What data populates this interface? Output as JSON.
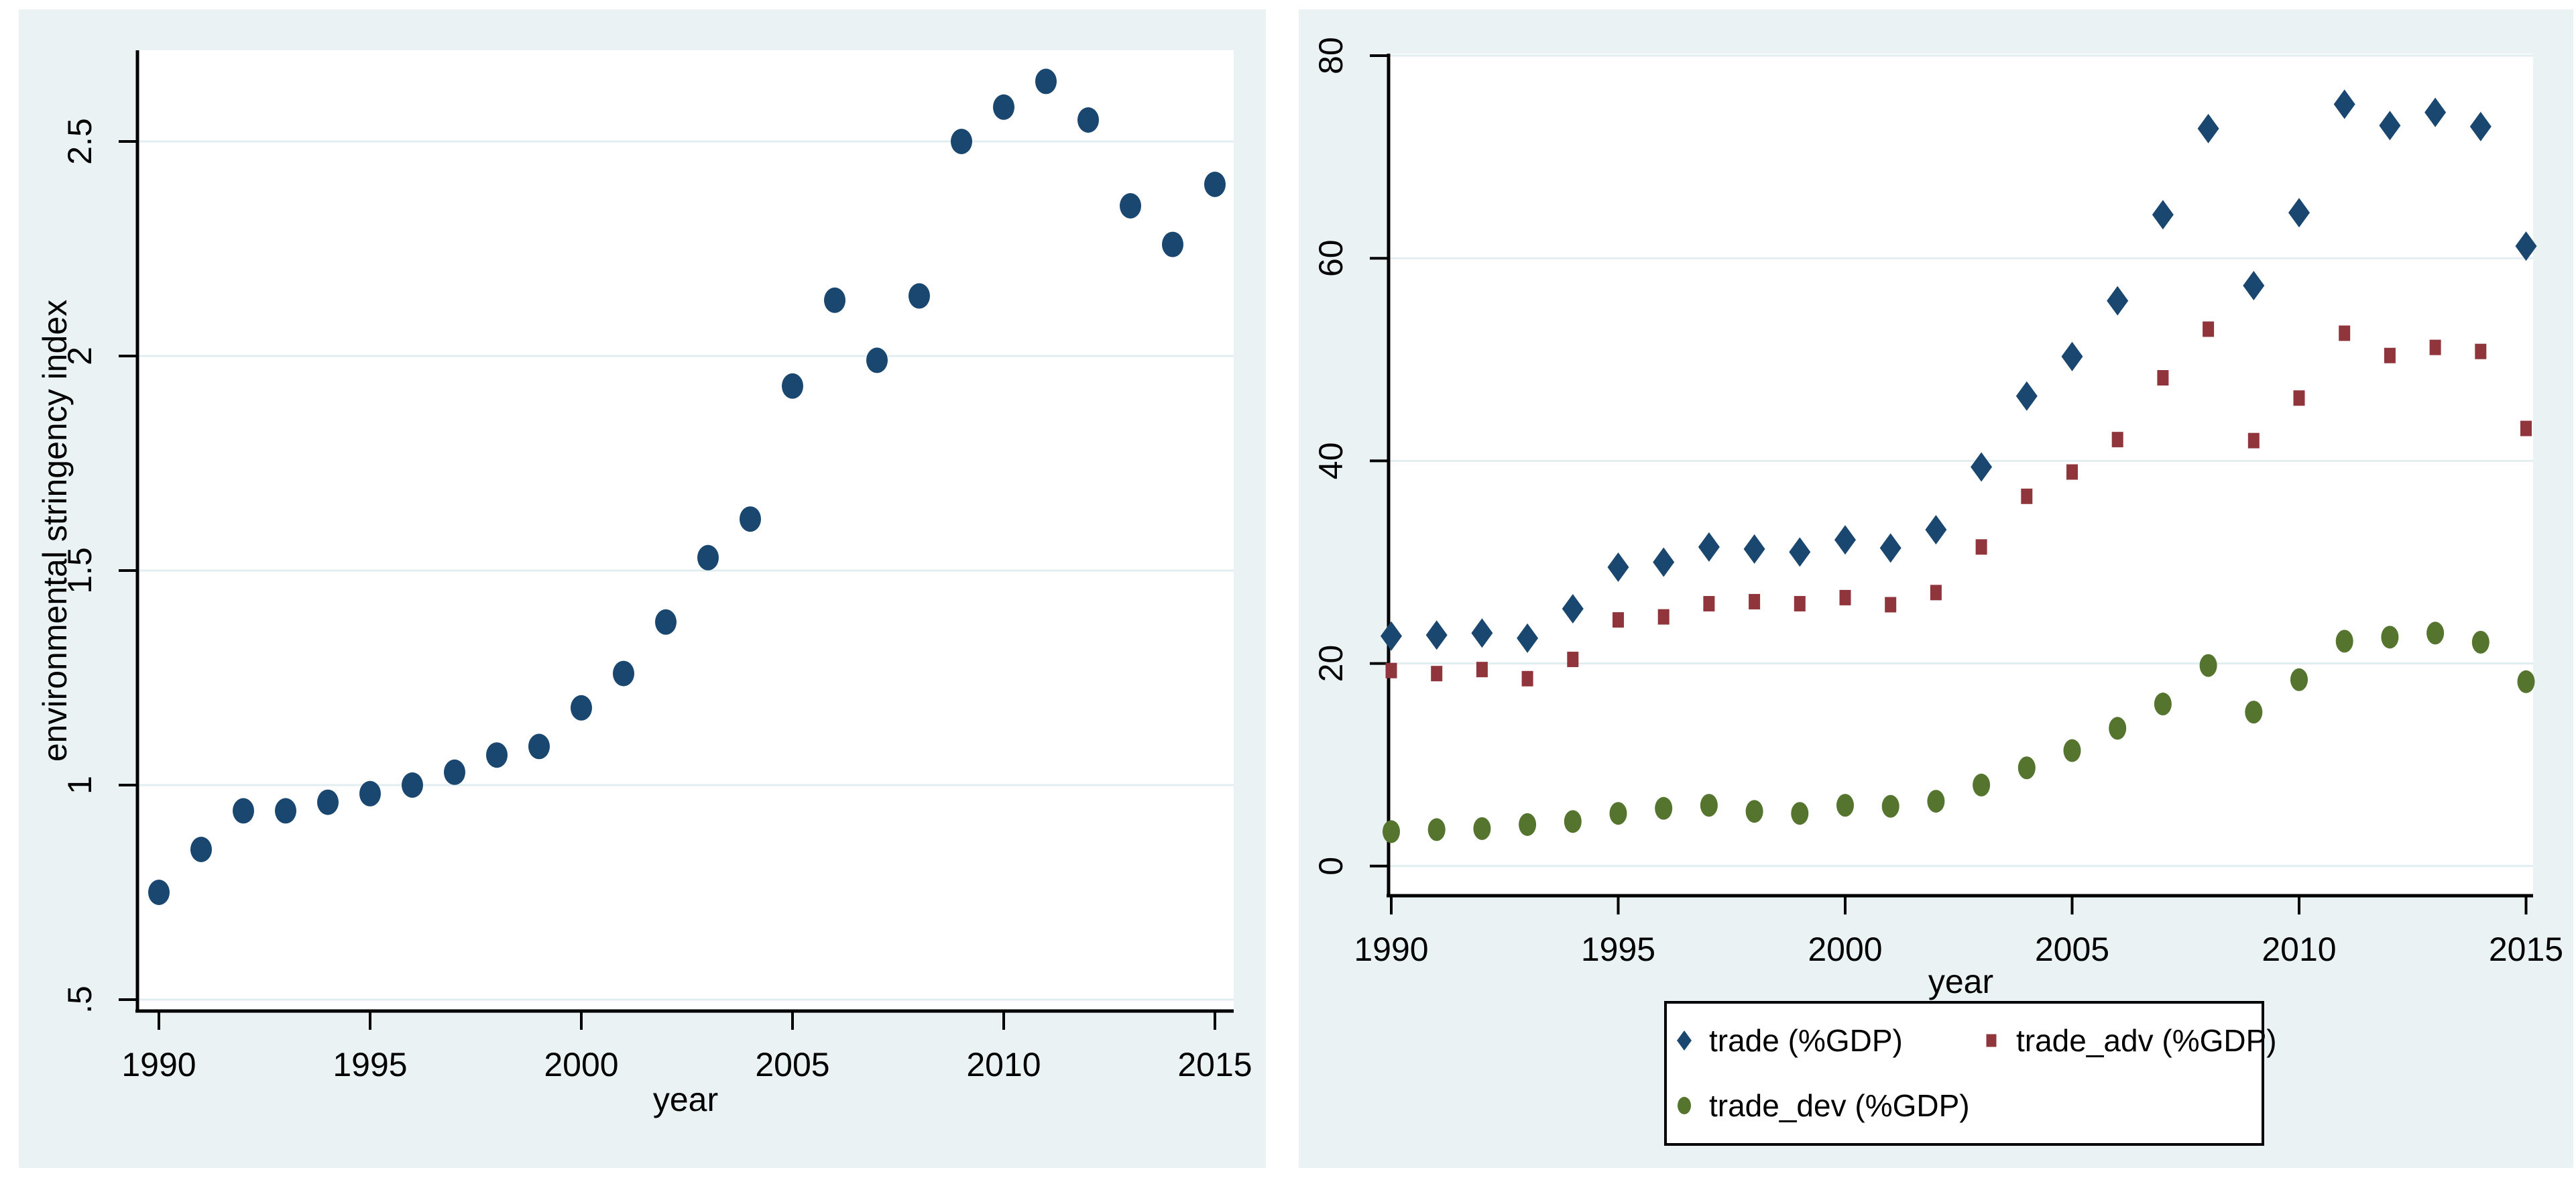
{
  "figure": {
    "description": "Two Stata-style scatter plots side by side",
    "background": "#ffffff",
    "panel_background": "#eaf2f3"
  },
  "chart_data": [
    {
      "type": "scatter",
      "title": "",
      "xlabel": "year",
      "ylabel": "environmental stringency index",
      "grid": true,
      "legend": null,
      "xlim": [
        1989.5,
        2015.5
      ],
      "ylim": [
        0.47,
        2.74
      ],
      "x_ticks": {
        "values": [
          1990,
          1995,
          2000,
          2005,
          2010,
          2015
        ],
        "labels": [
          "1990",
          "1995",
          "2000",
          "2005",
          "2010",
          "2015"
        ]
      },
      "y_ticks": {
        "values": [
          0.5,
          1,
          1.5,
          2,
          2.5
        ],
        "labels": [
          ".5",
          "1",
          "1.5",
          "2",
          "2.5"
        ]
      },
      "x": [
        1990,
        1991,
        1992,
        1993,
        1994,
        1995,
        1996,
        1997,
        1998,
        1999,
        2000,
        2001,
        2002,
        2003,
        2004,
        2005,
        2006,
        2007,
        2008,
        2009,
        2010,
        2011,
        2012,
        2013,
        2014,
        2015
      ],
      "series": [
        {
          "name": "environmental stringency index",
          "marker": "circle",
          "color": "#1a476f",
          "values": [
            0.75,
            0.85,
            0.94,
            0.94,
            0.96,
            0.98,
            1.0,
            1.03,
            1.07,
            1.09,
            1.18,
            1.26,
            1.38,
            1.53,
            1.62,
            1.93,
            2.13,
            1.99,
            2.14,
            2.5,
            2.58,
            2.64,
            2.55,
            2.35,
            2.26,
            2.4
          ]
        }
      ]
    },
    {
      "type": "scatter",
      "title": "",
      "xlabel": "year",
      "ylabel": "",
      "grid": true,
      "xlim": [
        1989.9,
        2015.5
      ],
      "ylim": [
        -3,
        83
      ],
      "x_ticks": {
        "values": [
          1990,
          1995,
          2000,
          2005,
          2010,
          2015
        ],
        "labels": [
          "1990",
          "1995",
          "2000",
          "2005",
          "2010",
          "2015"
        ]
      },
      "y_ticks": {
        "values": [
          0,
          20,
          40,
          60,
          80
        ],
        "labels": [
          "0",
          "20",
          "40",
          "60",
          "80"
        ]
      },
      "x": [
        1990,
        1991,
        1992,
        1993,
        1994,
        1995,
        1996,
        1997,
        1998,
        1999,
        2000,
        2001,
        2002,
        2003,
        2004,
        2005,
        2006,
        2007,
        2008,
        2009,
        2010,
        2011,
        2012,
        2013,
        2014,
        2015
      ],
      "series": [
        {
          "name": "trade (%GDP)",
          "marker": "diamond",
          "color": "#1a476f",
          "values": [
            22.7,
            22.8,
            23.0,
            22.5,
            25.4,
            29.5,
            30.0,
            31.5,
            31.3,
            31.0,
            32.2,
            31.4,
            33.2,
            39.4,
            46.4,
            50.3,
            55.8,
            64.3,
            72.8,
            57.3,
            64.5,
            75.2,
            73.1,
            74.4,
            73.0,
            61.2
          ]
        },
        {
          "name": "trade_adv (%GDP)",
          "marker": "square",
          "color": "#90353b",
          "values": [
            19.3,
            19.0,
            19.4,
            18.5,
            20.4,
            24.3,
            24.6,
            25.9,
            26.1,
            25.9,
            26.5,
            25.8,
            27.0,
            31.5,
            36.5,
            38.9,
            42.1,
            48.2,
            53.0,
            42.0,
            46.2,
            52.6,
            50.4,
            51.2,
            50.8,
            43.2
          ]
        },
        {
          "name": "trade_dev (%GDP)",
          "marker": "circle",
          "color": "#55752f",
          "values": [
            3.4,
            3.6,
            3.7,
            4.1,
            4.4,
            5.2,
            5.7,
            6.0,
            5.4,
            5.2,
            6.0,
            5.9,
            6.4,
            8.0,
            9.7,
            11.4,
            13.6,
            16.0,
            19.8,
            15.2,
            18.4,
            22.2,
            22.6,
            23.0,
            22.1,
            18.2
          ]
        }
      ],
      "legend": {
        "position": "bottom",
        "entries": [
          {
            "label": "trade (%GDP)",
            "marker": "diamond",
            "color": "#1a476f"
          },
          {
            "label": "trade_adv (%GDP)",
            "marker": "square",
            "color": "#90353b"
          },
          {
            "label": "trade_dev (%GDP)",
            "marker": "circle",
            "color": "#55752f"
          }
        ]
      }
    }
  ],
  "style": {
    "plot_bg": "#ffffff",
    "grid_color": "#e2edf0",
    "axis_color": "#000000",
    "navy": "#1a476f",
    "maroon": "#90353b",
    "olive": "#55752f"
  }
}
